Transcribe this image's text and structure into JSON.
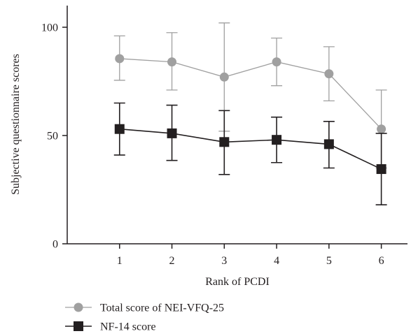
{
  "chart_data": {
    "type": "line",
    "title": "",
    "xlabel": "Rank of PCDI",
    "ylabel": "Subjective questionnaire scores",
    "x": [
      1,
      2,
      3,
      4,
      5,
      6
    ],
    "xlim": [
      0,
      6.5
    ],
    "ylim": [
      0,
      110
    ],
    "xticks": [
      "1",
      "2",
      "3",
      "4",
      "5",
      "6"
    ],
    "yticks": [
      "0",
      "50",
      "100"
    ],
    "grid": false,
    "legend_position": "bottom-left",
    "series": [
      {
        "name": "Total score of NEI-VFQ-25",
        "marker": "circle",
        "color": "#a0a0a0",
        "values": [
          85.5,
          84,
          77,
          84,
          78.5,
          53
        ],
        "error_upper": [
          96,
          97.5,
          102,
          95,
          91,
          71
        ],
        "error_lower": [
          75.5,
          71,
          52,
          73,
          66,
          35
        ]
      },
      {
        "name": "NF-14 score",
        "marker": "square",
        "color": "#231f20",
        "values": [
          53,
          51,
          47,
          48,
          46,
          34.5
        ],
        "error_upper": [
          65,
          64,
          61.5,
          58.5,
          56.5,
          51
        ],
        "error_lower": [
          41,
          38.5,
          32,
          37.5,
          35,
          18
        ]
      }
    ]
  }
}
